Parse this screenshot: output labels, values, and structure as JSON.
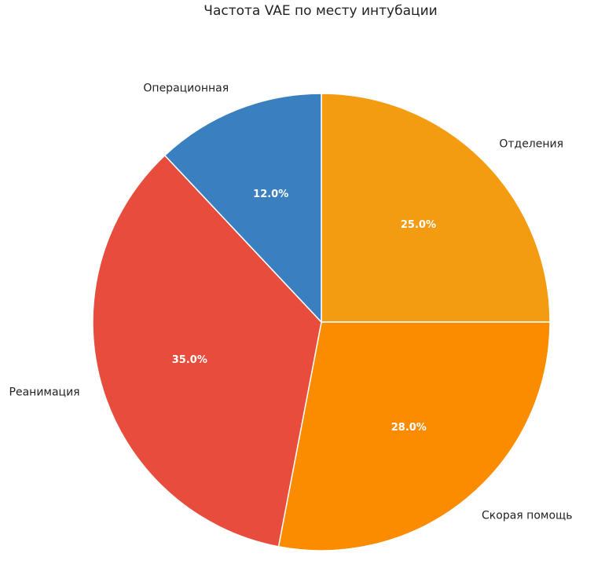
{
  "chart_data": {
    "type": "pie",
    "title": "Частота VAE по месту интубации",
    "slices": [
      {
        "label": "Отделения",
        "value": 25.0,
        "pct_label": "25.0%",
        "color": "#f39c12"
      },
      {
        "label": "Скорая помощь",
        "value": 28.0,
        "pct_label": "28.0%",
        "color": "#fb8c00"
      },
      {
        "label": "Реанимация",
        "value": 35.0,
        "pct_label": "35.0%",
        "color": "#e74c3c"
      },
      {
        "label": "Операционная",
        "value": 12.0,
        "pct_label": "12.0%",
        "color": "#3a7fc0"
      }
    ],
    "start_angle": "top",
    "direction": "clockwise",
    "legend": "none"
  }
}
